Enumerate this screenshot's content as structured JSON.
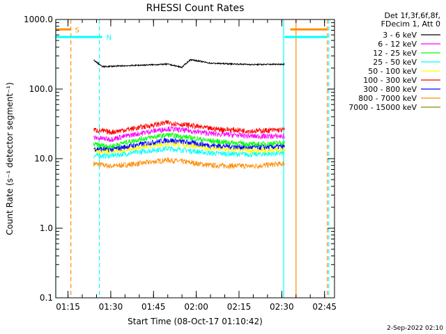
{
  "chart_data": {
    "type": "line",
    "title": "RHESSI Count Rates",
    "xlabel": "Start Time (08-Oct-17 01:10:42)",
    "ylabel": "Count Rate (s⁻¹ detector segment⁻¹)",
    "y_scale": "log",
    "ylim": [
      0.1,
      1000.0
    ],
    "xlim": [
      "01:10:42",
      "02:48:30"
    ],
    "x_ticks": [
      "01:15",
      "01:30",
      "01:45",
      "02:00",
      "02:15",
      "02:30",
      "02:45"
    ],
    "y_ticks": [
      "0.1",
      "1.0",
      "10.0",
      "100.0",
      "1000.0"
    ],
    "legend": {
      "placement": "outside-right",
      "header": [
        "Det 1f,3f,6f,8f,",
        "FDecim 1, Att 0"
      ]
    },
    "series": [
      {
        "name": "3 - 6 keV",
        "color": "#000000",
        "x": [
          "01:24",
          "01:27",
          "01:40",
          "01:50",
          "01:55",
          "01:58",
          "02:05",
          "02:20",
          "02:31"
        ],
        "values": [
          260,
          210,
          220,
          228,
          205,
          265,
          235,
          225,
          228
        ]
      },
      {
        "name": "6 - 12 keV",
        "color": "#ff00ff",
        "x": [
          "01:24",
          "01:30",
          "01:40",
          "01:50",
          "01:58",
          "02:05",
          "02:20",
          "02:31"
        ],
        "values": [
          20,
          19,
          23,
          27,
          25,
          23,
          21,
          21
        ]
      },
      {
        "name": "12 - 25 keV",
        "color": "#00ff00",
        "x": [
          "01:24",
          "01:30",
          "01:40",
          "01:50",
          "01:58",
          "02:05",
          "02:20",
          "02:31"
        ],
        "values": [
          16,
          15,
          19,
          22,
          20,
          18,
          16,
          17
        ]
      },
      {
        "name": "25 - 50 keV",
        "color": "#00ffff",
        "x": [
          "01:24",
          "01:30",
          "01:40",
          "01:50",
          "01:58",
          "02:05",
          "02:20",
          "02:31"
        ],
        "values": [
          11,
          11,
          12.5,
          14,
          13,
          12,
          11.5,
          12
        ]
      },
      {
        "name": "50 - 100 keV",
        "color": "#ffff00",
        "x": [
          "01:24",
          "01:30",
          "01:40",
          "01:50",
          "01:58",
          "02:05",
          "02:20",
          "02:31"
        ],
        "values": [
          13,
          12.5,
          14.5,
          16.5,
          15.5,
          14,
          13,
          13.5
        ]
      },
      {
        "name": "100 - 300 keV",
        "color": "#ff0000",
        "x": [
          "01:24",
          "01:30",
          "01:40",
          "01:50",
          "01:58",
          "02:05",
          "02:20",
          "02:31"
        ],
        "values": [
          26,
          24,
          28,
          33,
          30,
          27,
          25,
          26
        ]
      },
      {
        "name": "300 - 800 keV",
        "color": "#0000ff",
        "x": [
          "01:24",
          "01:30",
          "01:40",
          "01:50",
          "01:58",
          "02:05",
          "02:20",
          "02:31"
        ],
        "values": [
          14,
          13.5,
          16,
          18.5,
          17,
          15.5,
          14.5,
          15
        ]
      },
      {
        "name": "800 - 7000 keV",
        "color": "#ff8c00",
        "x": [
          "01:24",
          "01:30",
          "01:40",
          "01:50",
          "01:58",
          "02:05",
          "02:20",
          "02:31"
        ],
        "values": [
          8.5,
          7.8,
          8.5,
          9.6,
          8.8,
          8.0,
          7.8,
          8.5
        ]
      },
      {
        "name": "7000 - 15000 keV",
        "color": "#8b8b00",
        "x": [],
        "values": []
      }
    ],
    "markers": [
      {
        "label": "S",
        "color": "#ff8c00",
        "bar_x": [
          "01:10:42",
          "01:16"
        ],
        "bar_y": 720
      },
      {
        "label": "N",
        "color": "#00ffff",
        "bar_x": [
          "01:10:42",
          "01:27"
        ],
        "bar_y": 560
      },
      {
        "label": "",
        "color": "#ff8c00",
        "bar_x": [
          "02:33",
          "02:46"
        ],
        "bar_y": 720
      },
      {
        "label": "",
        "color": "#00ffff",
        "bar_x": [
          "02:31",
          "02:46"
        ],
        "bar_y": 560
      }
    ],
    "vertical_lines": [
      {
        "time": "01:10:42",
        "color": "#00ffff",
        "style": "solid"
      },
      {
        "time": "01:16",
        "color": "#ff8c00",
        "style": "dashed"
      },
      {
        "time": "01:26",
        "color": "#00ffff",
        "style": "dashed"
      },
      {
        "time": "02:30:40",
        "color": "#00ffff",
        "style": "solid"
      },
      {
        "time": "02:35",
        "color": "#ff8c00",
        "style": "solid"
      },
      {
        "time": "02:46",
        "color": "#ff8c00",
        "style": "dashed"
      },
      {
        "time": "02:46:30",
        "color": "#00ffff",
        "style": "dashed"
      }
    ],
    "grid": false,
    "timestamp": "2-Sep-2022 02:10"
  }
}
